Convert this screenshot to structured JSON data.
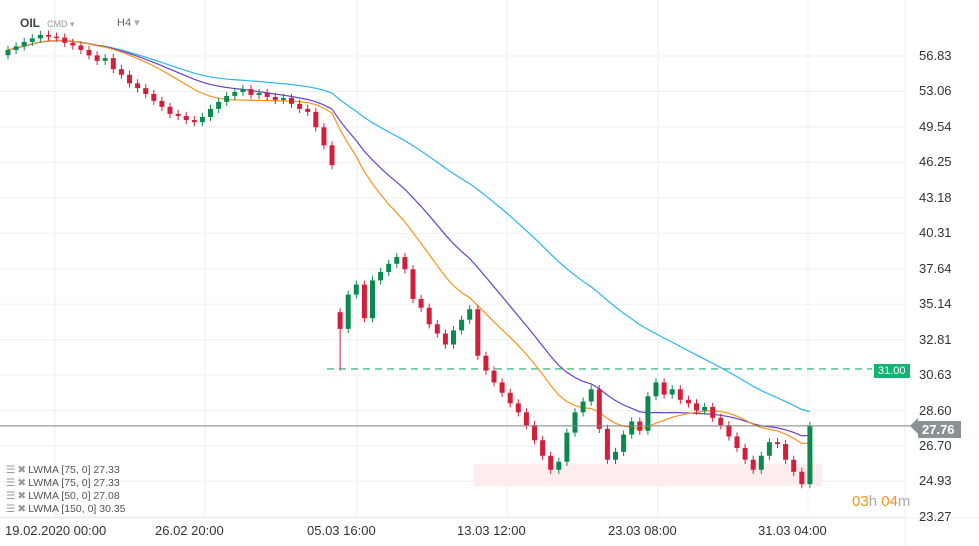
{
  "header": {
    "symbol": "OIL",
    "type": "CMD",
    "interval": "H4"
  },
  "y_axis": {
    "min": 23.27,
    "max": 56.83,
    "labels": [
      "56.83",
      "53.06",
      "49.54",
      "46.25",
      "43.18",
      "40.31",
      "37.64",
      "35.14",
      "32.81",
      "30.63",
      "28.60",
      "26.70",
      "24.93",
      "23.27"
    ]
  },
  "x_axis": [
    "19.02.2020  00:00",
    "26.02  20:00",
    "05.03  16:00",
    "13.03  12:00",
    "23.03  08:00",
    "31.03  04:00"
  ],
  "current_price": "27.76",
  "alert_level": {
    "value": 31.0,
    "label": "31.00"
  },
  "zone": {
    "low": 24.7,
    "high": 25.8
  },
  "timer": {
    "hours": "03",
    "h": "h",
    "minutes": "04",
    "m": "m"
  },
  "indicators": [
    {
      "label": "LWMA  [75,  0]  27.33",
      "period": 75,
      "color": "#6a3fc9"
    },
    {
      "label": "LWMA  [75,  0]  27.33",
      "period": 75,
      "color": "#6a3fc9"
    },
    {
      "label": "LWMA  [50,  0]  27.08",
      "period": 50,
      "color": "#f7931a"
    },
    {
      "label": "LWMA  [150,  0]  30.35",
      "period": 150,
      "color": "#29b6f6"
    }
  ],
  "colors": {
    "up": "#0c8a4e",
    "down": "#d31f3c",
    "alert": "#10b574"
  },
  "closes": [
    57.5,
    57.9,
    58.4,
    58.8,
    59.2,
    59.0,
    58.9,
    58.3,
    58.0,
    57.5,
    56.9,
    56.3,
    56.6,
    55.4,
    54.8,
    53.9,
    53.4,
    52.8,
    52.1,
    51.5,
    50.8,
    50.6,
    50.2,
    50.0,
    50.5,
    51.3,
    52.0,
    52.6,
    53.0,
    53.3,
    52.7,
    52.9,
    52.5,
    52.2,
    52.4,
    51.8,
    51.3,
    51.0,
    49.5,
    47.8,
    46.0,
    33.5,
    35.8,
    36.5,
    34.2,
    36.8,
    37.4,
    38.0,
    38.5,
    37.6,
    35.5,
    34.9,
    33.8,
    33.2,
    32.5,
    33.4,
    34.1,
    34.8,
    31.8,
    30.9,
    30.2,
    29.6,
    29.0,
    28.5,
    27.8,
    27.0,
    26.2,
    25.5,
    25.9,
    27.4,
    28.5,
    29.1,
    29.8,
    27.6,
    26.0,
    26.4,
    27.3,
    28.0,
    27.5,
    29.4,
    30.2,
    29.5,
    29.8,
    29.2,
    29.0,
    28.6,
    28.8,
    28.2,
    27.8,
    27.2,
    26.6,
    26.0,
    25.5,
    26.2,
    26.9,
    26.8,
    26.0,
    25.4,
    24.8,
    27.76
  ]
}
